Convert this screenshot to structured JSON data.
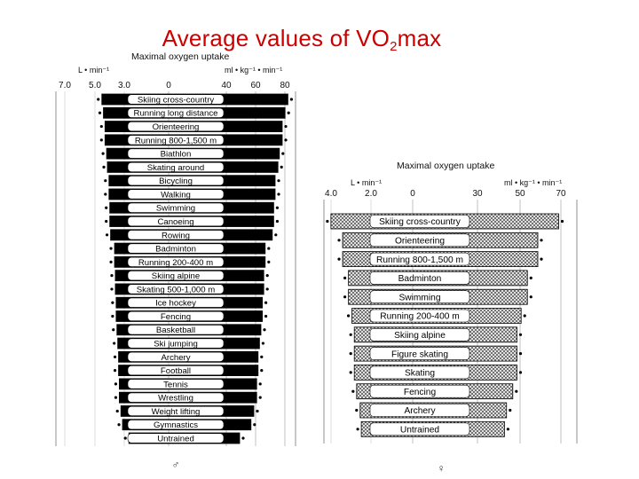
{
  "page": {
    "title_prefix": "Average values of VO",
    "title_sub": "2",
    "title_suffix": "max"
  },
  "chart_data": [
    {
      "type": "bar",
      "id": "men",
      "title": "Maximal oxygen uptake",
      "left_unit": "L • min⁻¹",
      "right_unit": "ml • kg⁻¹ • min⁻¹",
      "left_ticks": [
        "7.0",
        "5.0",
        "3.0"
      ],
      "right_ticks": [
        "0",
        "40",
        "60",
        "80"
      ],
      "xlim_rel": [
        0,
        85
      ],
      "footer": "♂",
      "categories": [
        "Skiing cross-country",
        "Running long distance",
        "Orienteering",
        "Running 800-1,500 m",
        "Biathlon",
        "Skating around",
        "Bicycling",
        "Walking",
        "Swimming",
        "Canoeing",
        "Rowing",
        "Badminton",
        "Running 200-400 m",
        "Skiing alpine",
        "Skating 500-1,000 m",
        "Ice hockey",
        "Fencing",
        "Basketball",
        "Ski jumping",
        "Archery",
        "Football",
        "Tennis",
        "Wrestling",
        "Weight lifting",
        "Gymnastics",
        "Untrained"
      ],
      "values": [
        84,
        82,
        80,
        80,
        78,
        77,
        75,
        75,
        74,
        74,
        73,
        68,
        68,
        67,
        67,
        66,
        66,
        65,
        64,
        63,
        63,
        62,
        62,
        60,
        58,
        50
      ]
    },
    {
      "type": "bar",
      "id": "women",
      "title": "Maximal oxygen uptake",
      "left_unit": "L • min⁻¹",
      "right_unit": "ml • kg⁻¹ • min⁻¹",
      "left_ticks": [
        "4.0",
        "2.0"
      ],
      "right_ticks": [
        "0",
        "30",
        "50",
        "70"
      ],
      "xlim_rel": [
        0,
        72
      ],
      "footer": "♀",
      "categories": [
        "Skiing cross-country",
        "Orienteering",
        "Running 800-1,500 m",
        "Badminton",
        "Swimming",
        "Running 200-400 m",
        "Skiing alpine",
        "Figure skating",
        "Skating",
        "Fencing",
        "Archery",
        "Untrained"
      ],
      "values": [
        70,
        60,
        60,
        55,
        55,
        52,
        50,
        50,
        50,
        48,
        45,
        44
      ]
    }
  ]
}
